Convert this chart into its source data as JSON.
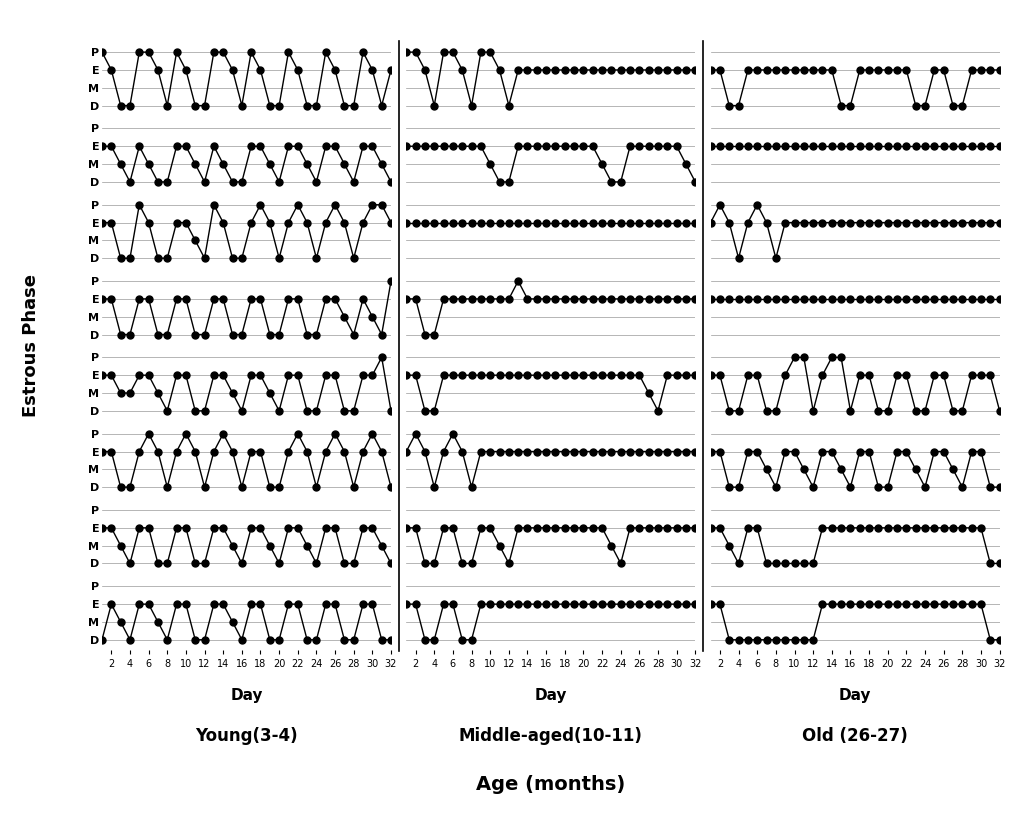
{
  "phase_labels": [
    "D",
    "M",
    "E",
    "P"
  ],
  "phase_vals": [
    0,
    1,
    2,
    3
  ],
  "days_x": [
    2,
    4,
    6,
    8,
    10,
    12,
    14,
    16,
    18,
    20,
    22,
    24,
    26,
    28,
    30,
    32
  ],
  "ylabel": "Estrous Phase",
  "title_young": "Young(3-4)",
  "title_middle": "Middle-aged(10-11)",
  "title_old": "Old (26-27)",
  "title_main": "Age (months)",
  "young_data": [
    [
      3,
      2,
      0,
      0,
      3,
      3,
      2,
      0,
      3,
      2,
      0,
      0,
      3,
      3,
      2,
      0,
      3,
      2,
      0,
      0,
      3,
      2,
      0,
      0,
      3,
      2,
      0,
      0,
      3,
      2,
      0,
      2
    ],
    [
      2,
      2,
      1,
      0,
      2,
      1,
      0,
      0,
      2,
      2,
      1,
      0,
      2,
      1,
      0,
      0,
      2,
      2,
      1,
      0,
      2,
      2,
      1,
      0,
      2,
      2,
      1,
      0,
      2,
      2,
      1,
      0
    ],
    [
      2,
      2,
      0,
      0,
      3,
      2,
      0,
      0,
      2,
      2,
      1,
      0,
      3,
      2,
      0,
      0,
      2,
      3,
      2,
      0,
      2,
      3,
      2,
      0,
      2,
      3,
      2,
      0,
      2,
      3,
      3,
      2
    ],
    [
      2,
      2,
      0,
      0,
      2,
      2,
      0,
      0,
      2,
      2,
      0,
      0,
      2,
      2,
      0,
      0,
      2,
      2,
      0,
      0,
      2,
      2,
      0,
      0,
      2,
      2,
      1,
      0,
      2,
      1,
      0,
      3
    ],
    [
      2,
      2,
      1,
      1,
      2,
      2,
      1,
      0,
      2,
      2,
      0,
      0,
      2,
      2,
      1,
      0,
      2,
      2,
      1,
      0,
      2,
      2,
      0,
      0,
      2,
      2,
      0,
      0,
      2,
      2,
      3,
      0
    ],
    [
      2,
      2,
      0,
      0,
      2,
      3,
      2,
      0,
      2,
      3,
      2,
      0,
      2,
      3,
      2,
      0,
      2,
      2,
      0,
      0,
      2,
      3,
      2,
      0,
      2,
      3,
      2,
      0,
      2,
      3,
      2,
      0
    ],
    [
      2,
      2,
      1,
      0,
      2,
      2,
      0,
      0,
      2,
      2,
      0,
      0,
      2,
      2,
      1,
      0,
      2,
      2,
      1,
      0,
      2,
      2,
      1,
      0,
      2,
      2,
      0,
      0,
      2,
      2,
      1,
      0
    ],
    [
      0,
      2,
      1,
      0,
      2,
      2,
      1,
      0,
      2,
      2,
      0,
      0,
      2,
      2,
      1,
      0,
      2,
      2,
      0,
      0,
      2,
      2,
      0,
      0,
      2,
      2,
      0,
      0,
      2,
      2,
      0,
      0
    ]
  ],
  "middle_data": [
    [
      3,
      3,
      2,
      0,
      3,
      3,
      2,
      0,
      3,
      3,
      2,
      0,
      2,
      2,
      2,
      2,
      2,
      2,
      2,
      2,
      2,
      2,
      2,
      2,
      2,
      2,
      2,
      2,
      2,
      2,
      2,
      2
    ],
    [
      2,
      2,
      2,
      2,
      2,
      2,
      2,
      2,
      2,
      1,
      0,
      0,
      2,
      2,
      2,
      2,
      2,
      2,
      2,
      2,
      2,
      1,
      0,
      0,
      2,
      2,
      2,
      2,
      2,
      2,
      1,
      0
    ],
    [
      2,
      2,
      2,
      2,
      2,
      2,
      2,
      2,
      2,
      2,
      2,
      2,
      2,
      2,
      2,
      2,
      2,
      2,
      2,
      2,
      2,
      2,
      2,
      2,
      2,
      2,
      2,
      2,
      2,
      2,
      2,
      2
    ],
    [
      2,
      2,
      0,
      0,
      2,
      2,
      2,
      2,
      2,
      2,
      2,
      2,
      3,
      2,
      2,
      2,
      2,
      2,
      2,
      2,
      2,
      2,
      2,
      2,
      2,
      2,
      2,
      2,
      2,
      2,
      2,
      2
    ],
    [
      2,
      2,
      0,
      0,
      2,
      2,
      2,
      2,
      2,
      2,
      2,
      2,
      2,
      2,
      2,
      2,
      2,
      2,
      2,
      2,
      2,
      2,
      2,
      2,
      2,
      2,
      1,
      0,
      2,
      2,
      2,
      2
    ],
    [
      2,
      3,
      2,
      0,
      2,
      3,
      2,
      0,
      2,
      2,
      2,
      2,
      2,
      2,
      2,
      2,
      2,
      2,
      2,
      2,
      2,
      2,
      2,
      2,
      2,
      2,
      2,
      2,
      2,
      2,
      2,
      2
    ],
    [
      2,
      2,
      0,
      0,
      2,
      2,
      0,
      0,
      2,
      2,
      1,
      0,
      2,
      2,
      2,
      2,
      2,
      2,
      2,
      2,
      2,
      2,
      1,
      0,
      2,
      2,
      2,
      2,
      2,
      2,
      2,
      2
    ],
    [
      2,
      2,
      0,
      0,
      2,
      2,
      0,
      0,
      2,
      2,
      2,
      2,
      2,
      2,
      2,
      2,
      2,
      2,
      2,
      2,
      2,
      2,
      2,
      2,
      2,
      2,
      2,
      2,
      2,
      2,
      2,
      2
    ]
  ],
  "old_data": [
    [
      2,
      2,
      0,
      0,
      2,
      2,
      2,
      2,
      2,
      2,
      2,
      2,
      2,
      2,
      0,
      0,
      2,
      2,
      2,
      2,
      2,
      2,
      0,
      0,
      2,
      2,
      0,
      0,
      2,
      2,
      2,
      2
    ],
    [
      2,
      2,
      2,
      2,
      2,
      2,
      2,
      2,
      2,
      2,
      2,
      2,
      2,
      2,
      2,
      2,
      2,
      2,
      2,
      2,
      2,
      2,
      2,
      2,
      2,
      2,
      2,
      2,
      2,
      2,
      2,
      2
    ],
    [
      2,
      3,
      2,
      0,
      2,
      3,
      2,
      0,
      2,
      2,
      2,
      2,
      2,
      2,
      2,
      2,
      2,
      2,
      2,
      2,
      2,
      2,
      2,
      2,
      2,
      2,
      2,
      2,
      2,
      2,
      2,
      2
    ],
    [
      2,
      2,
      2,
      2,
      2,
      2,
      2,
      2,
      2,
      2,
      2,
      2,
      2,
      2,
      2,
      2,
      2,
      2,
      2,
      2,
      2,
      2,
      2,
      2,
      2,
      2,
      2,
      2,
      2,
      2,
      2,
      2
    ],
    [
      2,
      2,
      0,
      0,
      2,
      2,
      0,
      0,
      2,
      3,
      3,
      0,
      2,
      3,
      3,
      0,
      2,
      2,
      0,
      0,
      2,
      2,
      0,
      0,
      2,
      2,
      0,
      0,
      2,
      2,
      2,
      0
    ],
    [
      2,
      2,
      0,
      0,
      2,
      2,
      1,
      0,
      2,
      2,
      1,
      0,
      2,
      2,
      1,
      0,
      2,
      2,
      0,
      0,
      2,
      2,
      1,
      0,
      2,
      2,
      1,
      0,
      2,
      2,
      0,
      0
    ],
    [
      2,
      2,
      1,
      0,
      2,
      2,
      0,
      0,
      0,
      0,
      0,
      0,
      2,
      2,
      2,
      2,
      2,
      2,
      2,
      2,
      2,
      2,
      2,
      2,
      2,
      2,
      2,
      2,
      2,
      2,
      0,
      0
    ],
    [
      2,
      2,
      0,
      0,
      0,
      0,
      0,
      0,
      0,
      0,
      0,
      0,
      2,
      2,
      2,
      2,
      2,
      2,
      2,
      2,
      2,
      2,
      2,
      2,
      2,
      2,
      2,
      2,
      2,
      2,
      0,
      0
    ]
  ],
  "grid_color": "#999999",
  "line_color": "#000000",
  "marker_size": 5,
  "line_width": 1.0,
  "grid_lw": 0.5,
  "bg": "#ffffff",
  "sep_color": "#000000",
  "ylabel_fs": 13,
  "xlabel_fs": 11,
  "title_fs": 12,
  "main_title_fs": 14,
  "ytick_fs": 8,
  "xtick_fs": 7
}
